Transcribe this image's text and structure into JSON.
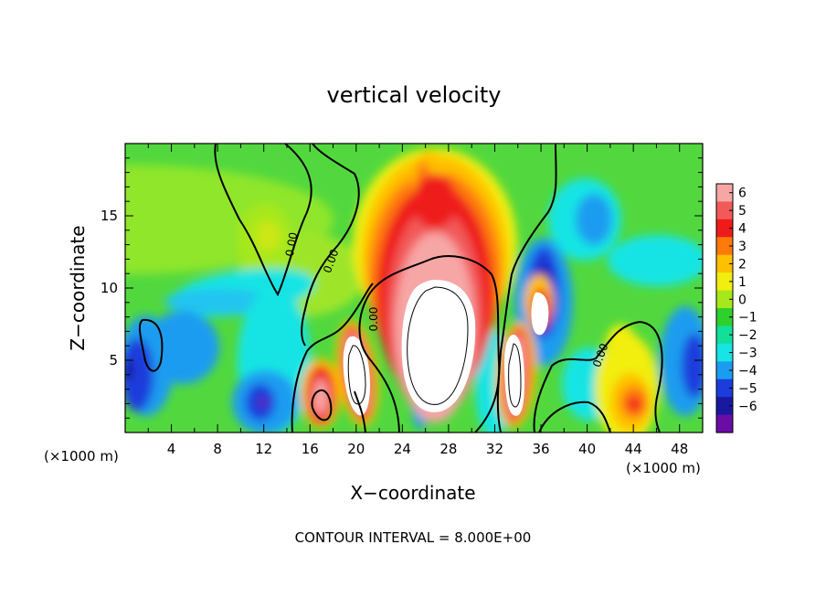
{
  "chart_data": {
    "type": "heatmap",
    "title": "vertical velocity",
    "xlabel": "X−coordinate",
    "ylabel": "Z−coordinate",
    "x_unit_left": "(×1000 m)",
    "x_unit_right": "(×1000 m)",
    "xlim": [
      0,
      50
    ],
    "ylim": [
      0,
      20
    ],
    "x_ticks": [
      4,
      8,
      12,
      16,
      20,
      24,
      28,
      32,
      36,
      40,
      44,
      48
    ],
    "y_ticks": [
      5,
      10,
      15
    ],
    "colorbar": {
      "range": [
        -6,
        6
      ],
      "ticks": [
        "6",
        "5",
        "4",
        "3",
        "2",
        "1",
        "0",
        "−1",
        "−2",
        "−3",
        "−4",
        "−5",
        "−6"
      ],
      "colors": [
        "#f7a6a6",
        "#f25a5a",
        "#ef1a1a",
        "#ff7a0a",
        "#ffc000",
        "#f2ee10",
        "#a6e81a",
        "#2ed02e",
        "#12e09a",
        "#17e4e4",
        "#1c9cf0",
        "#1c3cdc",
        "#1818a0",
        "#6a0ca6"
      ]
    },
    "zero_contour_labels": [
      "0.00",
      "0.00",
      "0.00",
      "0.00"
    ],
    "features": [
      {
        "kind": "updraft",
        "x": 27,
        "z": 7,
        "peak": 8
      },
      {
        "kind": "updraft",
        "x": 19.8,
        "z": 4.6,
        "peak": 7
      },
      {
        "kind": "updraft",
        "x": 33.6,
        "z": 4.4,
        "peak": 7
      },
      {
        "kind": "updraft",
        "x": 36.6,
        "z": 8.6,
        "peak": 7
      },
      {
        "kind": "updraft",
        "x": 17.2,
        "z": 2.5,
        "peak": 6
      },
      {
        "kind": "updraft",
        "x": 43.8,
        "z": 2.0,
        "peak": 4
      },
      {
        "kind": "updraft",
        "x": 43.8,
        "z": 6.2,
        "peak": 2.5
      },
      {
        "kind": "updraft",
        "x": 12.6,
        "z": 14,
        "peak": 1.5
      },
      {
        "kind": "downdraft",
        "x": 1,
        "z": 3.5,
        "peak": -5
      },
      {
        "kind": "downdraft",
        "x": 12,
        "z": 2,
        "peak": -5
      },
      {
        "kind": "downdraft",
        "x": 35.4,
        "z": 10,
        "peak": -5
      },
      {
        "kind": "downdraft",
        "x": 49,
        "z": 4.5,
        "peak": -5
      },
      {
        "kind": "downdraft",
        "x": 40.5,
        "z": 15,
        "peak": -3
      }
    ]
  },
  "footer": "CONTOUR INTERVAL =  8.000E+00"
}
